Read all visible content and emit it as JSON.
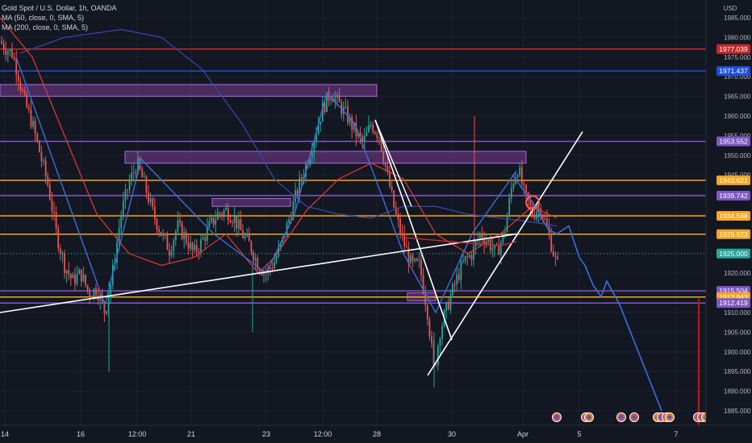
{
  "legend": {
    "symbol": "Gold Spot / U.S. Dollar, 1h, OANDA",
    "ma1": "MA (50, close, 0, SMA, 5)",
    "ma2": "MA (200, close, 0, SMA, 5)"
  },
  "currency": "USD",
  "colors": {
    "bg": "#131722",
    "up": "#26a69a",
    "down": "#ef5350",
    "ma50": "#e53935",
    "ma200": "#3949ab",
    "projection": "#3b6fd6",
    "zone": "#8e44ad",
    "orange": "#f5a623",
    "purple_line": "#7e57c2",
    "blue_line": "#1e4fd8",
    "red_line": "#c62828",
    "white": "#ffffff"
  },
  "chart_data": {
    "type": "candlestick",
    "ylim": [
      1883,
      1988
    ],
    "y_ticks": [
      1885,
      1890,
      1895,
      1900,
      1905,
      1910,
      1915,
      1920,
      1925,
      1930,
      1935,
      1940,
      1945,
      1950,
      1955,
      1960,
      1965,
      1970,
      1975,
      1980,
      1985
    ],
    "x_ticks": [
      "14",
      "16",
      "12:00",
      "21",
      "23",
      "12:00",
      "28",
      "30",
      "Apr",
      "5",
      "7"
    ],
    "price_labels": [
      {
        "value": 1977.039,
        "text": "1977.039",
        "color": "#c62828"
      },
      {
        "value": 1971.437,
        "text": "1971.437",
        "color": "#1e4fd8"
      },
      {
        "value": 1953.552,
        "text": "1953.552",
        "color": "#7e57c2"
      },
      {
        "value": 1943.621,
        "text": "1943.621",
        "color": "#f5a623"
      },
      {
        "value": 1939.742,
        "text": "1939.742",
        "color": "#7e57c2"
      },
      {
        "value": 1934.598,
        "text": "1934.598",
        "color": "#f5a623"
      },
      {
        "value": 1929.923,
        "text": "1929.923",
        "color": "#f5a623"
      },
      {
        "value": 1925.0,
        "text": "1925.000",
        "color": "#26a69a"
      },
      {
        "value": 1915.504,
        "text": "1915.504",
        "color": "#7e57c2"
      },
      {
        "value": 1913.943,
        "text": "1913.943",
        "color": "#f5a623"
      },
      {
        "value": 1912.419,
        "text": "1912.419",
        "color": "#7e57c2"
      }
    ],
    "price_path": [
      [
        0,
        1979
      ],
      [
        8,
        1977
      ],
      [
        15,
        1976
      ],
      [
        22,
        1971
      ],
      [
        30,
        1964
      ],
      [
        40,
        1958
      ],
      [
        50,
        1950
      ],
      [
        60,
        1942
      ],
      [
        70,
        1930
      ],
      [
        80,
        1922
      ],
      [
        90,
        1918
      ],
      [
        100,
        1920
      ],
      [
        110,
        1915
      ],
      [
        120,
        1916
      ],
      [
        130,
        1910
      ],
      [
        138,
        1918
      ],
      [
        150,
        1935
      ],
      [
        160,
        1943
      ],
      [
        170,
        1948
      ],
      [
        180,
        1942
      ],
      [
        190,
        1935
      ],
      [
        200,
        1930
      ],
      [
        210,
        1926
      ],
      [
        220,
        1932
      ],
      [
        230,
        1929
      ],
      [
        240,
        1925
      ],
      [
        250,
        1928
      ],
      [
        260,
        1932
      ],
      [
        270,
        1935
      ],
      [
        280,
        1936
      ],
      [
        290,
        1934
      ],
      [
        300,
        1930
      ],
      [
        310,
        1927
      ],
      [
        320,
        1922
      ],
      [
        330,
        1920
      ],
      [
        340,
        1923
      ],
      [
        350,
        1928
      ],
      [
        360,
        1935
      ],
      [
        370,
        1942
      ],
      [
        380,
        1948
      ],
      [
        390,
        1955
      ],
      [
        400,
        1962
      ],
      [
        410,
        1966
      ],
      [
        420,
        1963
      ],
      [
        430,
        1960
      ],
      [
        440,
        1956
      ],
      [
        450,
        1953
      ],
      [
        460,
        1958
      ],
      [
        470,
        1955
      ],
      [
        480,
        1945
      ],
      [
        490,
        1935
      ],
      [
        500,
        1928
      ],
      [
        510,
        1922
      ],
      [
        520,
        1922
      ],
      [
        530,
        1910
      ],
      [
        538,
        1895
      ],
      [
        545,
        1905
      ],
      [
        555,
        1912
      ],
      [
        565,
        1918
      ],
      [
        575,
        1923
      ],
      [
        585,
        1925
      ],
      [
        595,
        1930
      ],
      [
        605,
        1928
      ],
      [
        615,
        1925
      ],
      [
        625,
        1930
      ],
      [
        635,
        1943
      ],
      [
        642,
        1947
      ],
      [
        650,
        1940
      ],
      [
        660,
        1935
      ],
      [
        670,
        1937
      ],
      [
        680,
        1930
      ],
      [
        690,
        1922
      ]
    ],
    "ma50_path": [
      [
        0,
        1985
      ],
      [
        40,
        1975
      ],
      [
        80,
        1955
      ],
      [
        120,
        1935
      ],
      [
        160,
        1925
      ],
      [
        200,
        1922
      ],
      [
        240,
        1924
      ],
      [
        280,
        1930
      ],
      [
        320,
        1920
      ],
      [
        340,
        1924
      ],
      [
        380,
        1936
      ],
      [
        420,
        1944
      ],
      [
        460,
        1948
      ],
      [
        500,
        1944
      ],
      [
        540,
        1930
      ],
      [
        580,
        1925
      ],
      [
        620,
        1930
      ],
      [
        660,
        1937
      ],
      [
        690,
        1934
      ]
    ],
    "ma200_path": [
      [
        25,
        1976
      ],
      [
        80,
        1980
      ],
      [
        150,
        1982
      ],
      [
        200,
        1980
      ],
      [
        250,
        1972
      ],
      [
        300,
        1958
      ],
      [
        340,
        1944
      ],
      [
        380,
        1937
      ],
      [
        420,
        1935
      ],
      [
        460,
        1934
      ],
      [
        500,
        1937
      ],
      [
        540,
        1937
      ],
      [
        580,
        1935
      ],
      [
        620,
        1934
      ],
      [
        660,
        1933
      ],
      [
        690,
        1932
      ]
    ],
    "projection_path": [
      [
        635,
        1945
      ],
      [
        660,
        1938
      ],
      [
        680,
        1931
      ],
      [
        690,
        1930
      ],
      [
        705,
        1932
      ],
      [
        718,
        1924
      ],
      [
        725,
        1922
      ],
      [
        735,
        1917
      ],
      [
        745,
        1914
      ],
      [
        752,
        1918
      ],
      [
        768,
        1912
      ],
      [
        820,
        1885
      ]
    ],
    "trendlines": [
      {
        "color": "#ffffff",
        "from": [
          0,
          1910
        ],
        "to": [
          640,
          1930
        ]
      },
      {
        "color": "#ffffff",
        "from": [
          465,
          1959
        ],
        "to": [
          560,
          1903
        ]
      },
      {
        "color": "#ffffff",
        "from": [
          530,
          1894
        ],
        "to": [
          722,
          1956
        ]
      }
    ],
    "zones": [
      {
        "x0": 0,
        "x1": 467,
        "y0": 1965,
        "y1": 1968
      },
      {
        "x0": 155,
        "x1": 652,
        "y0": 1948,
        "y1": 1951
      },
      {
        "x0": 263,
        "x1": 360,
        "y0": 1937,
        "y1": 1939
      },
      {
        "x0": 505,
        "x1": 540,
        "y0": 1913,
        "y1": 1915
      }
    ],
    "hlines": [
      {
        "value": 1977.039,
        "color": "#c62828"
      },
      {
        "value": 1971.437,
        "color": "#1e4fd8"
      },
      {
        "value": 1953.552,
        "color": "#7e57c2"
      },
      {
        "value": 1943.621,
        "color": "#f5a623"
      },
      {
        "value": 1939.742,
        "color": "#7e57c2"
      },
      {
        "value": 1934.598,
        "color": "#f5a623"
      },
      {
        "value": 1929.923,
        "color": "#f5a623"
      },
      {
        "value": 1915.504,
        "color": "#7e57c2"
      },
      {
        "value": 1913.943,
        "color": "#f5a623"
      },
      {
        "value": 1912.419,
        "color": "#7e57c2"
      }
    ],
    "event_icons": 12
  }
}
